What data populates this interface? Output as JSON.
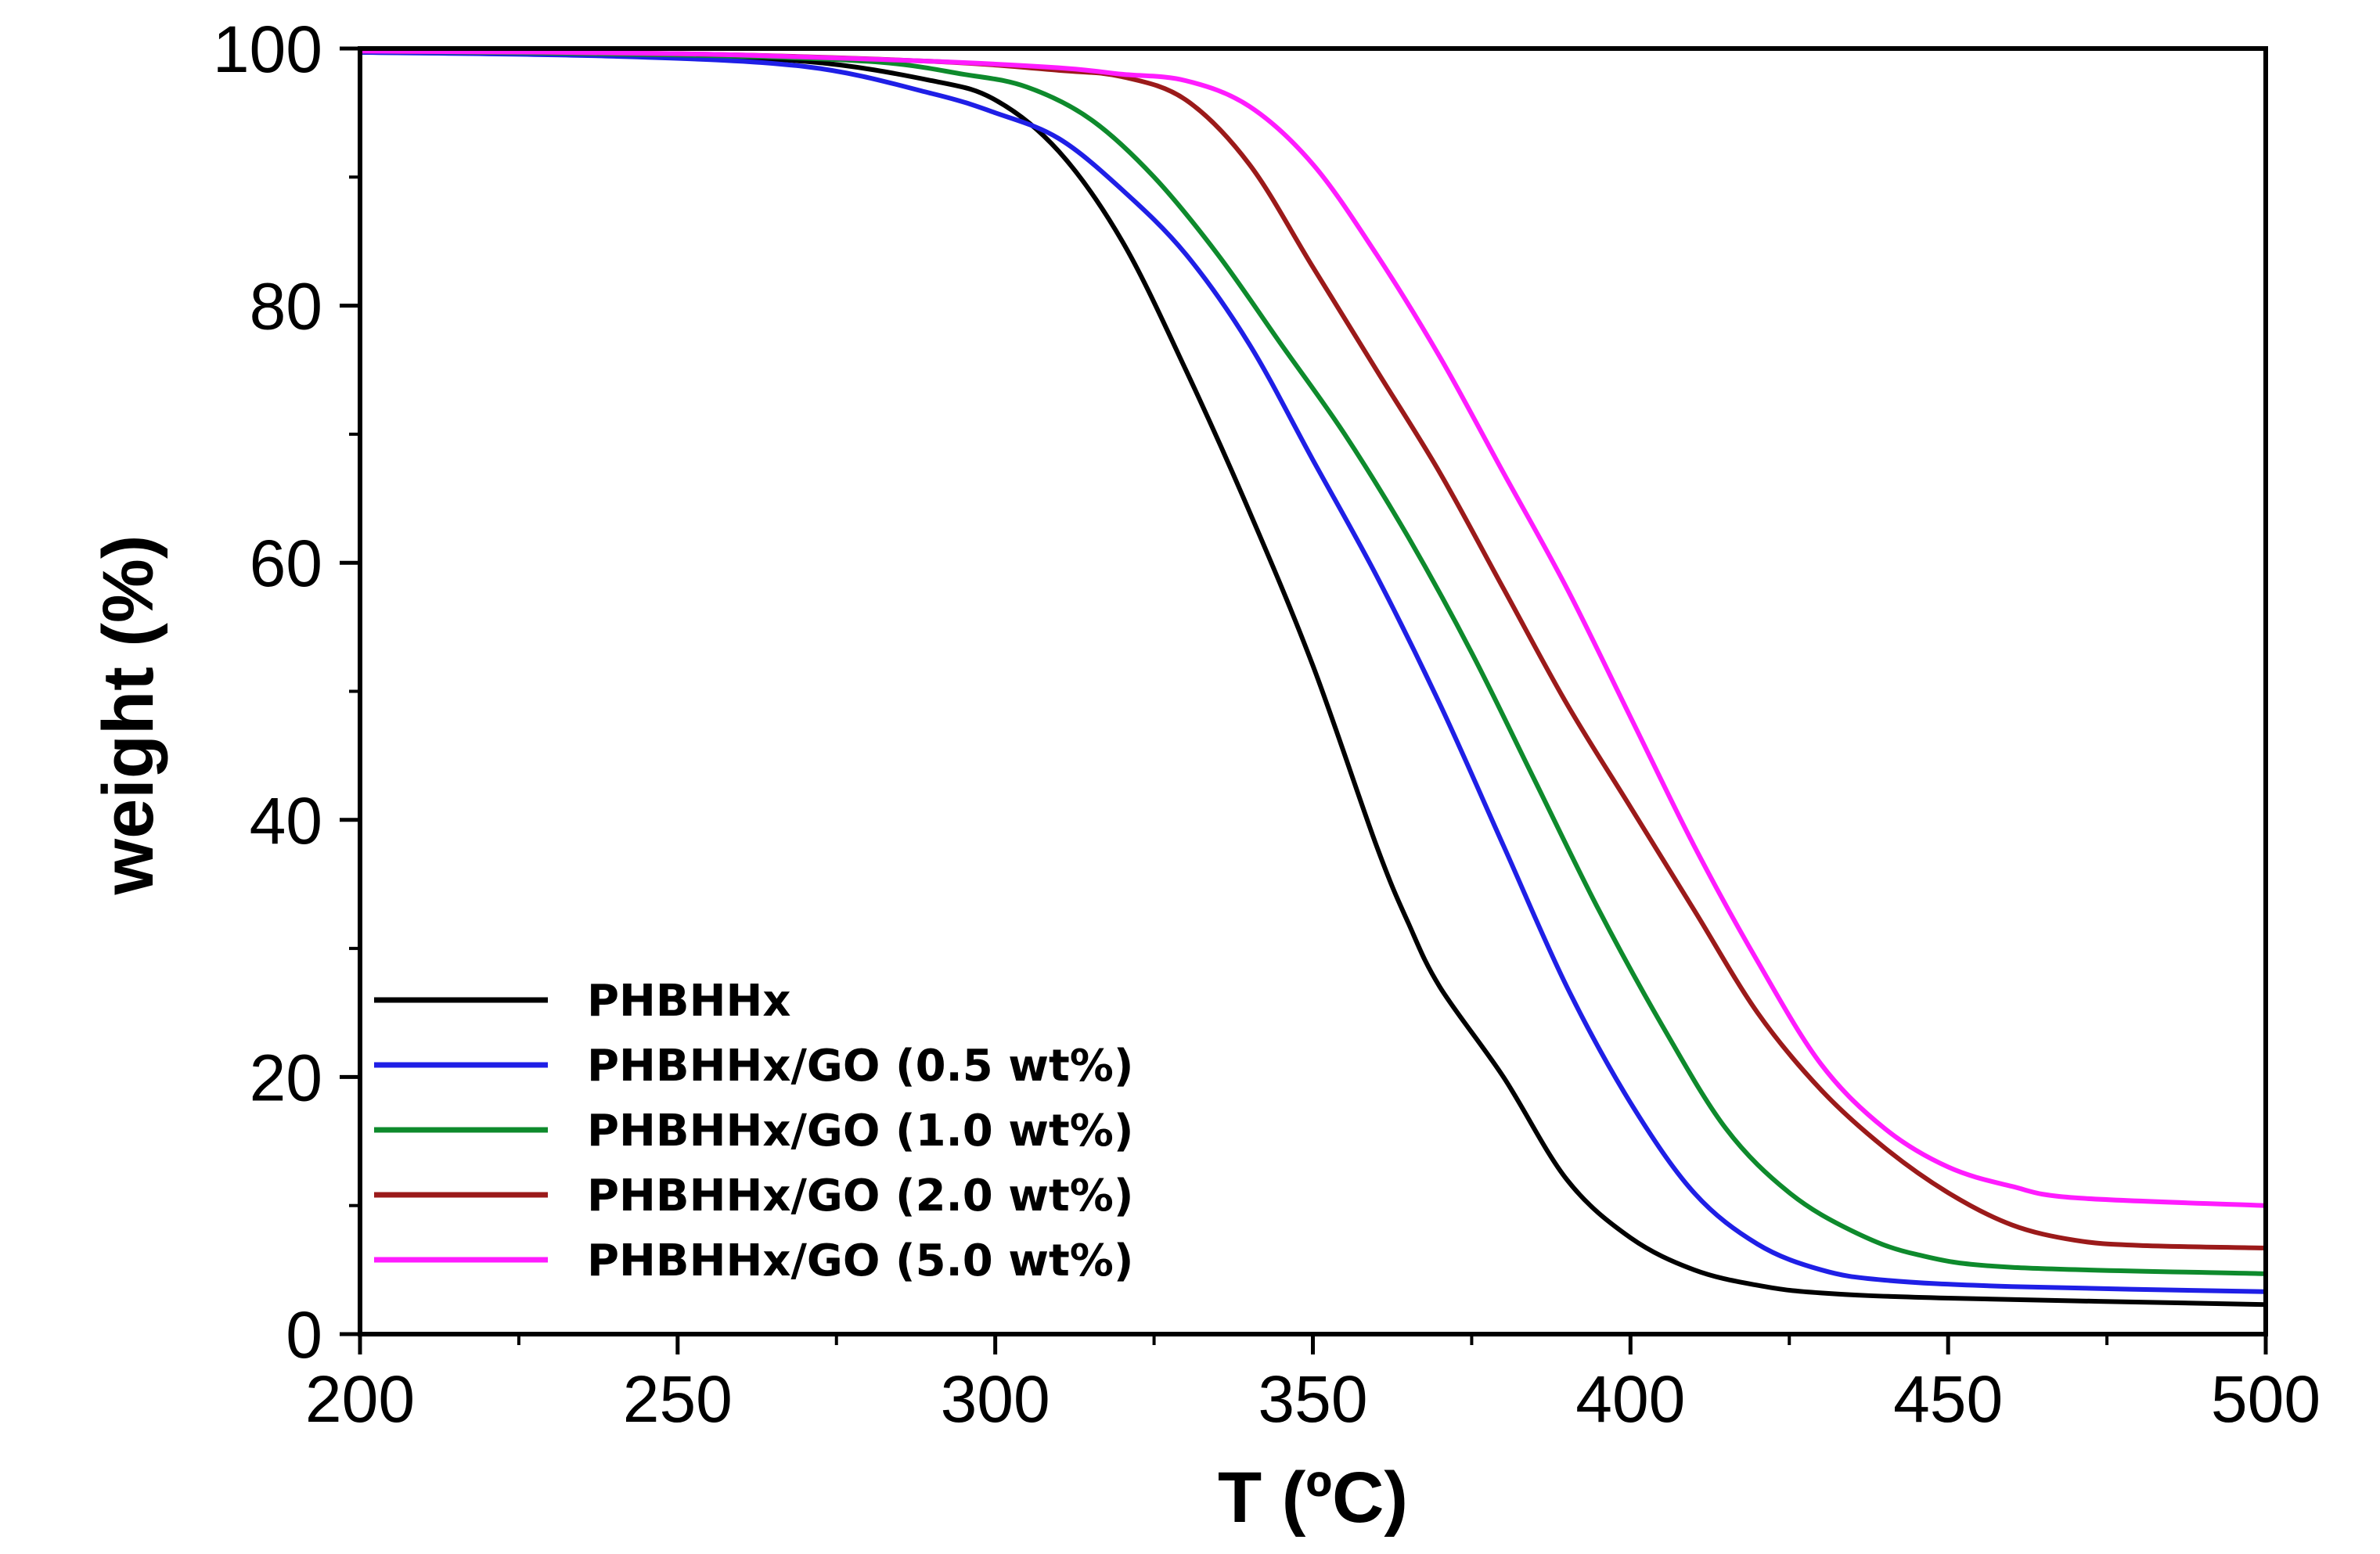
{
  "chart_data": {
    "type": "line",
    "xlabel": "T (ºC)",
    "ylabel": "weight (%)",
    "xlim": [
      200,
      500
    ],
    "ylim": [
      0,
      100
    ],
    "xticks": [
      200,
      250,
      300,
      350,
      400,
      450,
      500
    ],
    "yticks": [
      0,
      20,
      40,
      60,
      80,
      100
    ],
    "x_minor_step": 25,
    "y_minor_step": 10,
    "grid": false,
    "legend_position": "bottom-left",
    "series": [
      {
        "name": "PHBHHx",
        "color": "#000000",
        "points": [
          [
            200,
            99.7
          ],
          [
            240,
            99.5
          ],
          [
            270,
            99.0
          ],
          [
            290,
            97.5
          ],
          [
            300,
            96.0
          ],
          [
            310,
            92.0
          ],
          [
            320,
            85.0
          ],
          [
            330,
            75.0
          ],
          [
            340,
            64.0
          ],
          [
            350,
            52.0
          ],
          [
            360,
            38.0
          ],
          [
            365,
            32.0
          ],
          [
            370,
            27.0
          ],
          [
            380,
            20.0
          ],
          [
            390,
            12.0
          ],
          [
            400,
            7.5
          ],
          [
            410,
            5.0
          ],
          [
            420,
            3.8
          ],
          [
            430,
            3.2
          ],
          [
            450,
            2.8
          ],
          [
            500,
            2.3
          ]
        ]
      },
      {
        "name": "PHBHHx/GO (0.5 wt%)",
        "color": "#1f1fe6",
        "points": [
          [
            200,
            99.7
          ],
          [
            240,
            99.4
          ],
          [
            270,
            98.6
          ],
          [
            290,
            96.5
          ],
          [
            300,
            95.0
          ],
          [
            310,
            93.0
          ],
          [
            320,
            89.0
          ],
          [
            330,
            84.0
          ],
          [
            340,
            77.0
          ],
          [
            350,
            68.0
          ],
          [
            360,
            59.0
          ],
          [
            370,
            49.0
          ],
          [
            380,
            38.0
          ],
          [
            390,
            27.0
          ],
          [
            400,
            18.0
          ],
          [
            410,
            11.0
          ],
          [
            420,
            7.0
          ],
          [
            430,
            5.0
          ],
          [
            440,
            4.2
          ],
          [
            460,
            3.7
          ],
          [
            500,
            3.3
          ]
        ]
      },
      {
        "name": "PHBHHx/GO (1.0 wt%)",
        "color": "#0e8a2c",
        "points": [
          [
            200,
            99.8
          ],
          [
            250,
            99.5
          ],
          [
            280,
            99.0
          ],
          [
            295,
            98.0
          ],
          [
            305,
            97.0
          ],
          [
            315,
            94.5
          ],
          [
            325,
            90.0
          ],
          [
            335,
            84.0
          ],
          [
            345,
            77.0
          ],
          [
            355,
            70.0
          ],
          [
            365,
            62.0
          ],
          [
            375,
            53.0
          ],
          [
            385,
            43.0
          ],
          [
            395,
            33.0
          ],
          [
            405,
            24.0
          ],
          [
            415,
            16.0
          ],
          [
            425,
            11.0
          ],
          [
            435,
            8.0
          ],
          [
            445,
            6.2
          ],
          [
            460,
            5.2
          ],
          [
            500,
            4.7
          ]
        ]
      },
      {
        "name": "PHBHHx/GO (2.0 wt%)",
        "color": "#9b1a1a",
        "points": [
          [
            200,
            99.8
          ],
          [
            250,
            99.6
          ],
          [
            290,
            99.0
          ],
          [
            310,
            98.3
          ],
          [
            320,
            97.8
          ],
          [
            330,
            96.0
          ],
          [
            340,
            91.0
          ],
          [
            350,
            83.0
          ],
          [
            360,
            75.0
          ],
          [
            370,
            67.0
          ],
          [
            380,
            58.0
          ],
          [
            390,
            49.0
          ],
          [
            400,
            41.0
          ],
          [
            410,
            33.0
          ],
          [
            420,
            25.0
          ],
          [
            430,
            19.0
          ],
          [
            440,
            14.5
          ],
          [
            450,
            11.0
          ],
          [
            460,
            8.5
          ],
          [
            470,
            7.3
          ],
          [
            480,
            6.9
          ],
          [
            500,
            6.7
          ]
        ]
      },
      {
        "name": "PHBHHx/GO (5.0 wt%)",
        "color": "#ff1cff",
        "points": [
          [
            200,
            99.8
          ],
          [
            250,
            99.6
          ],
          [
            290,
            99.0
          ],
          [
            310,
            98.5
          ],
          [
            320,
            98.0
          ],
          [
            330,
            97.5
          ],
          [
            340,
            95.5
          ],
          [
            350,
            91.0
          ],
          [
            360,
            84.0
          ],
          [
            370,
            76.0
          ],
          [
            380,
            67.0
          ],
          [
            390,
            58.0
          ],
          [
            400,
            48.0
          ],
          [
            410,
            38.0
          ],
          [
            420,
            29.0
          ],
          [
            430,
            21.0
          ],
          [
            440,
            16.0
          ],
          [
            450,
            13.0
          ],
          [
            460,
            11.5
          ],
          [
            470,
            10.6
          ],
          [
            500,
            10.0
          ]
        ]
      }
    ]
  }
}
